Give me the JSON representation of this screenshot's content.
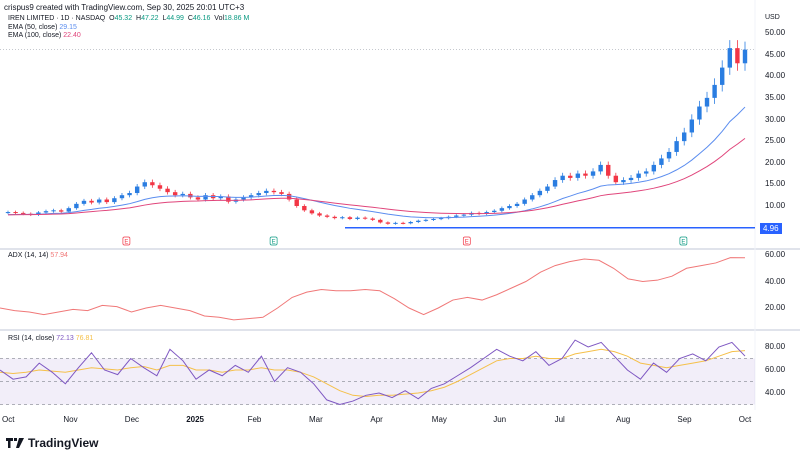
{
  "header": {
    "credit": "crispus9 created with TradingView.com, Sep 30, 2025 20:01 UTC+3",
    "symbol": "IREN LIMITED · 1D · NASDAQ",
    "o_label": "O",
    "o": "45.32",
    "h_label": "H",
    "h": "47.22",
    "l_label": "L",
    "l": "44.99",
    "c_label": "C",
    "c": "46.16",
    "vol_label": "Vol",
    "vol": "18.86 M",
    "ema50_label": "EMA (50, close)",
    "ema50": "29.15",
    "ema100_label": "EMA (100, close)",
    "ema100": "22.40",
    "adx_label": "ADX (14, 14)",
    "adx": "57.94",
    "rsi_label": "RSI (14, close)",
    "rsi": "72.13",
    "rsi_ma": "76.81"
  },
  "colors": {
    "up": "#2a7de1",
    "down": "#f23645",
    "ema50": "#5b8def",
    "ema100": "#e0457b",
    "adx": "#f07878",
    "rsi": "#7e57c2",
    "rsi_ma": "#f5c04a",
    "hline": "#2962ff"
  },
  "logo": "TradingView",
  "chart_data": [
    {
      "type": "candlestick",
      "currency": "USD",
      "ylim": [
        0,
        52
      ],
      "yticks": [
        "50.00",
        "45.00",
        "40.00",
        "35.00",
        "30.00",
        "25.00",
        "20.00",
        "15.00",
        "10.00"
      ],
      "xticks": [
        "Oct",
        "Nov",
        "Dec",
        "2025",
        "Feb",
        "Mar",
        "Apr",
        "May",
        "Jun",
        "Jul",
        "Aug",
        "Sep",
        "Oct"
      ],
      "closes": [
        8.6,
        8.4,
        8.2,
        8.0,
        8.5,
        8.8,
        9.0,
        8.7,
        9.5,
        10.5,
        11.2,
        10.8,
        11.5,
        10.9,
        11.8,
        12.5,
        13.0,
        14.5,
        15.5,
        14.8,
        14.0,
        13.2,
        12.5,
        12.8,
        12.0,
        11.5,
        12.5,
        11.8,
        12.2,
        11.0,
        11.5,
        12.0,
        12.5,
        13.0,
        13.5,
        13.2,
        12.8,
        11.5,
        10.0,
        9.0,
        8.3,
        7.8,
        7.5,
        7.2,
        7.4,
        7.0,
        7.3,
        7.1,
        6.8,
        6.2,
        5.9,
        6.1,
        6.0,
        6.3,
        6.6,
        6.8,
        7.0,
        7.2,
        7.5,
        7.8,
        8.0,
        8.4,
        8.2,
        8.6,
        8.9,
        9.5,
        10.0,
        10.5,
        11.5,
        12.5,
        13.5,
        14.5,
        16.0,
        17.0,
        16.5,
        17.5,
        17.0,
        18.0,
        19.5,
        17.0,
        15.5,
        16.0,
        16.5,
        17.5,
        18.0,
        19.5,
        21.0,
        22.5,
        25.0,
        27.0,
        30.0,
        33.0,
        35.0,
        38.0,
        42.0,
        46.5,
        43.0,
        46.16
      ],
      "series": [
        {
          "name": "EMA (50, close)",
          "last": 29.15
        },
        {
          "name": "EMA (100, close)",
          "last": 22.4
        }
      ],
      "horizontal_line": {
        "value": 4.96,
        "label": "4.96"
      },
      "last_price_line": 46.16,
      "earnings": [
        {
          "month": "Nov",
          "label": "E",
          "kind": "red"
        },
        {
          "month": "Feb",
          "label": "E",
          "kind": "green"
        },
        {
          "month": "May",
          "label": "E",
          "kind": "red"
        },
        {
          "month": "Sep",
          "label": "E",
          "kind": "green"
        }
      ]
    },
    {
      "type": "line",
      "name": "ADX (14, 14)",
      "ylim": [
        10,
        62
      ],
      "yticks": [
        "60.00",
        "40.00",
        "20.00"
      ],
      "values": [
        20,
        18,
        17,
        15,
        17,
        19,
        18,
        22,
        21,
        17,
        20,
        22,
        20,
        18,
        14,
        13,
        11,
        12,
        13,
        20,
        28,
        32,
        34,
        33,
        33,
        34,
        33,
        27,
        20,
        15,
        20,
        26,
        28,
        26,
        30,
        35,
        40,
        47,
        52,
        55,
        57,
        56,
        50,
        42,
        40,
        41,
        44,
        50,
        52,
        54,
        58,
        57.94
      ]
    },
    {
      "type": "line",
      "name": "RSI (14, close)",
      "ylim": [
        30,
        90
      ],
      "yticks": [
        "80.00",
        "60.00",
        "40.00"
      ],
      "bands": [
        70,
        50,
        30
      ],
      "values": [
        60,
        52,
        54,
        66,
        58,
        48,
        62,
        75,
        60,
        56,
        70,
        62,
        55,
        78,
        68,
        52,
        60,
        55,
        64,
        58,
        72,
        50,
        62,
        58,
        48,
        34,
        30,
        33,
        38,
        40,
        36,
        42,
        35,
        44,
        48,
        55,
        62,
        70,
        78,
        72,
        68,
        76,
        64,
        70,
        86,
        80,
        84,
        72,
        60,
        52,
        66,
        58,
        70,
        74,
        68,
        80,
        84,
        72.13
      ],
      "ma": [
        58,
        57,
        58,
        60,
        59,
        58,
        60,
        62,
        61,
        60,
        62,
        63,
        60,
        64,
        64,
        60,
        60,
        58,
        60,
        60,
        62,
        60,
        60,
        58,
        54,
        48,
        42,
        38,
        37,
        38,
        38,
        39,
        40,
        42,
        45,
        50,
        56,
        62,
        68,
        70,
        70,
        72,
        70,
        70,
        74,
        76,
        78,
        76,
        72,
        66,
        64,
        62,
        64,
        66,
        68,
        72,
        76,
        76.81
      ]
    }
  ]
}
